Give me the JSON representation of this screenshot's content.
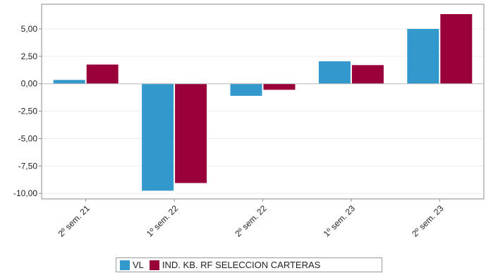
{
  "chart_data": {
    "type": "bar",
    "categories": [
      "2º sem. 21",
      "1º sem. 22",
      "2º sem. 22",
      "1º sem. 23",
      "2º sem. 23"
    ],
    "series": [
      {
        "name": "VL",
        "color": "#3399cc",
        "values": [
          0.35,
          -9.75,
          -1.1,
          2.05,
          5.0
        ]
      },
      {
        "name": "IND. KB. RF SELECCION CARTERAS",
        "color": "#99003a",
        "values": [
          1.75,
          -9.05,
          -0.55,
          1.7,
          6.35
        ]
      }
    ],
    "y_ticks": [
      "5,00",
      "2,50",
      "0,00",
      "-2,50",
      "-5,00",
      "-7,50",
      "-10,00"
    ],
    "y_tick_values": [
      5,
      2.5,
      0,
      -2.5,
      -5,
      -7.5,
      -10
    ],
    "ylim": [
      -10.5,
      7.25
    ],
    "grid": true,
    "legend_position": "bottom"
  }
}
